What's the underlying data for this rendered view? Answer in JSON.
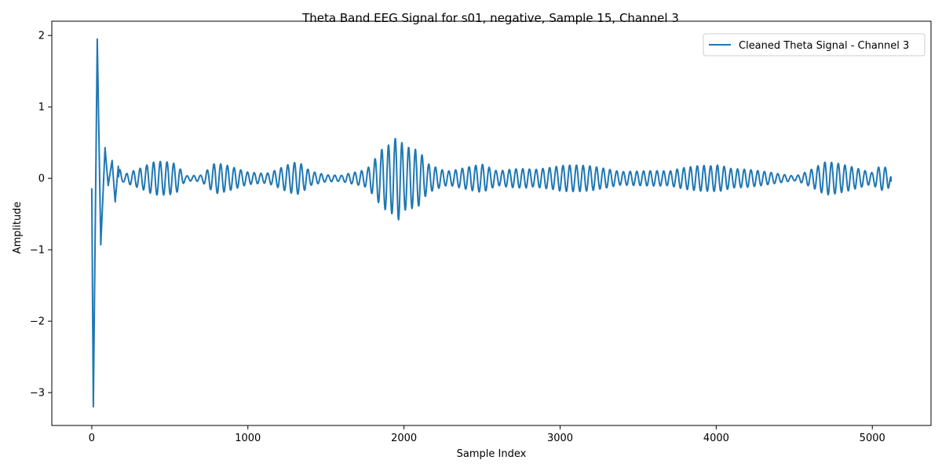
{
  "chart_data": {
    "type": "line",
    "title": "Theta Band EEG Signal for s01, negative, Sample 15, Channel 3",
    "xlabel": "Sample Index",
    "ylabel": "Amplitude",
    "xlim": [
      -256,
      5376
    ],
    "ylim": [
      -3.46,
      2.2
    ],
    "x_ticks": [
      0,
      1000,
      2000,
      3000,
      4000,
      5000
    ],
    "x_tick_labels": [
      "0",
      "1000",
      "2000",
      "3000",
      "4000",
      "5000"
    ],
    "y_ticks": [
      -3,
      -2,
      -1,
      0,
      1,
      2
    ],
    "y_tick_labels": [
      "−3",
      "−2",
      "−1",
      "0",
      "1",
      "2"
    ],
    "grid": false,
    "legend_position": "top-right",
    "series": [
      {
        "name": "Cleaned Theta Signal - Channel 3",
        "color": "#1f77b4",
        "key_points": [
          [
            0,
            -0.14
          ],
          [
            10,
            -3.2
          ],
          [
            35,
            1.95
          ],
          [
            58,
            -0.93
          ],
          [
            85,
            0.43
          ],
          [
            105,
            -0.1
          ],
          [
            130,
            0.25
          ],
          [
            150,
            -0.33
          ],
          [
            170,
            0.17
          ],
          [
            200,
            -0.05
          ],
          [
            260,
            0.1
          ],
          [
            320,
            -0.15
          ],
          [
            400,
            0.25
          ],
          [
            430,
            -0.27
          ],
          [
            510,
            0.31
          ],
          [
            550,
            -0.3
          ],
          [
            600,
            0.05
          ],
          [
            700,
            -0.05
          ],
          [
            790,
            0.22
          ],
          [
            870,
            -0.18
          ],
          [
            1000,
            0.1
          ],
          [
            1100,
            -0.1
          ],
          [
            1250,
            0.22
          ],
          [
            1300,
            -0.24
          ],
          [
            1330,
            0.23
          ],
          [
            1400,
            -0.1
          ],
          [
            1500,
            0.05
          ],
          [
            1600,
            -0.05
          ],
          [
            1700,
            0.15
          ],
          [
            1760,
            -0.17
          ],
          [
            1860,
            0.45
          ],
          [
            1920,
            -0.5
          ],
          [
            1950,
            0.58
          ],
          [
            1960,
            -0.6
          ],
          [
            2000,
            0.45
          ],
          [
            2100,
            0.42
          ],
          [
            2150,
            -0.25
          ],
          [
            2300,
            0.15
          ],
          [
            2500,
            0.2
          ],
          [
            2600,
            -0.1
          ],
          [
            2800,
            0.2
          ],
          [
            2950,
            -0.18
          ],
          [
            3000,
            0.19
          ],
          [
            3200,
            -0.18
          ],
          [
            3400,
            0.15
          ],
          [
            3500,
            -0.12
          ],
          [
            3700,
            0.1
          ],
          [
            3850,
            0.2
          ],
          [
            3950,
            0.29
          ],
          [
            4000,
            -0.27
          ],
          [
            4100,
            0.15
          ],
          [
            4300,
            -0.1
          ],
          [
            4500,
            0.05
          ],
          [
            4700,
            0.25
          ],
          [
            4800,
            -0.2
          ],
          [
            5000,
            0.1
          ],
          [
            5050,
            0.25
          ],
          [
            5100,
            -0.25
          ],
          [
            5120,
            -0.05
          ]
        ]
      }
    ]
  }
}
